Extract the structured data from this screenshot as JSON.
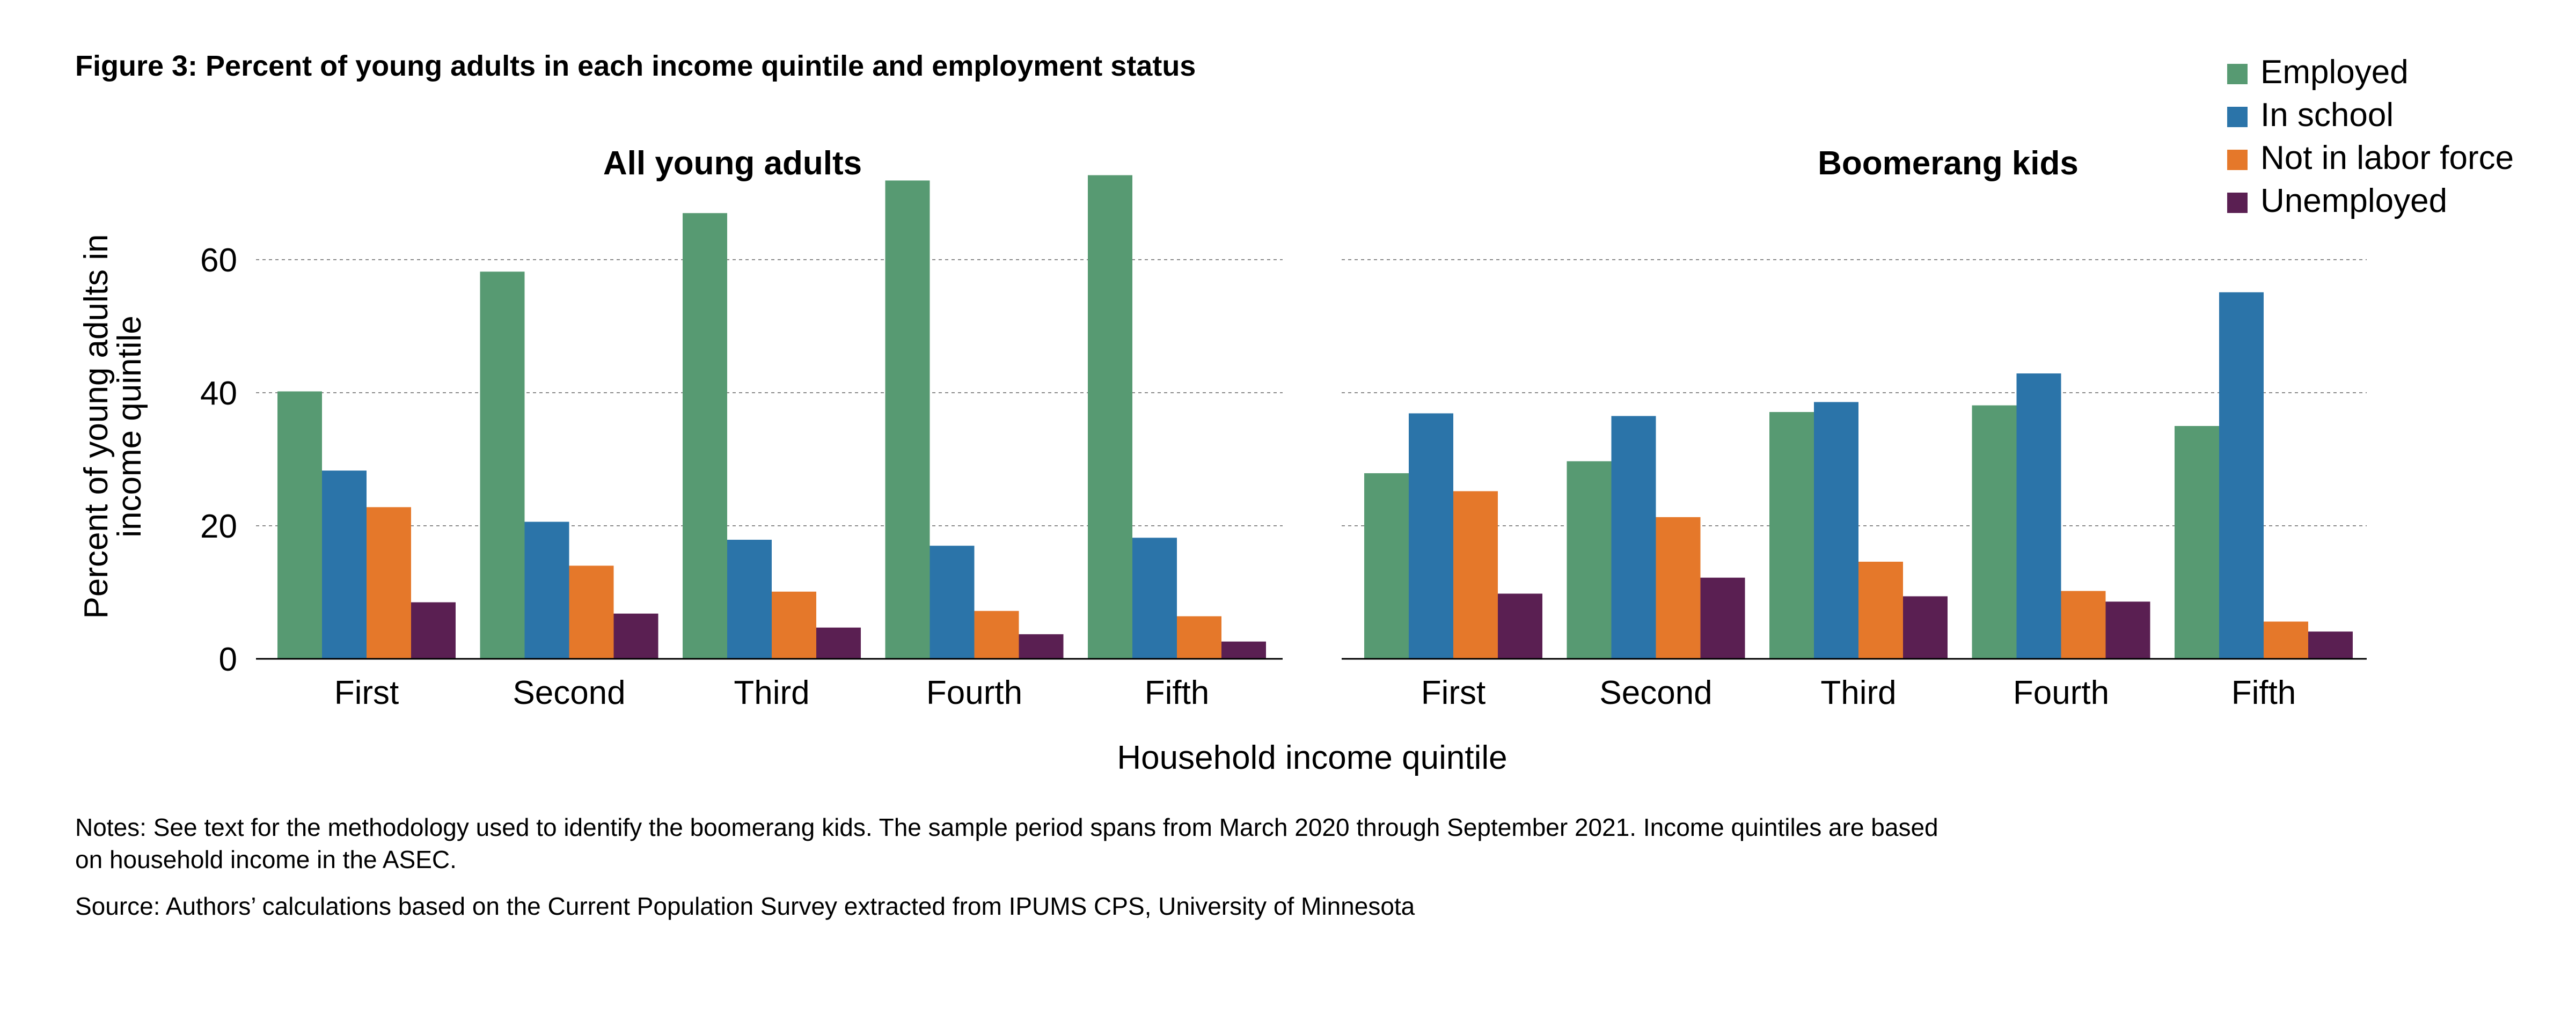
{
  "figure_title": "Figure 3: Percent of young adults in each income quintile and employment status",
  "notes": "Notes: See text for the methodology used to identify the boomerang kids. The sample period spans from March 2020 through September 2021. Income quintiles are based on household income in the ASEC.",
  "source": "Source: Authors’ calculations based on the Current Population Survey extracted from IPUMS CPS, University of Minnesota",
  "colors": {
    "Employed": "#579a72",
    "In school": "#2b74a9",
    "Not in labor force": "#e5782a",
    "Unemployed": "#5a1f52",
    "grid": "#8a8a8a"
  },
  "chart_data": {
    "type": "bar",
    "xlabel": "Household income quintile",
    "ylabel": "Percent of young adults in income quintile",
    "ylim": [
      0,
      73
    ],
    "yticks": [
      0,
      20,
      40,
      60
    ],
    "grid": "horizontal dotted",
    "legend_position": "top-right",
    "categories": [
      "First",
      "Second",
      "Third",
      "Fourth",
      "Fifth"
    ],
    "panels": [
      {
        "title": "All young adults",
        "series": [
          {
            "name": "Employed",
            "values": [
              40.2,
              58.2,
              67.0,
              71.9,
              72.7
            ]
          },
          {
            "name": "In school",
            "values": [
              28.3,
              20.6,
              17.9,
              17.0,
              18.2
            ]
          },
          {
            "name": "Not in labor force",
            "values": [
              22.8,
              14.0,
              10.1,
              7.2,
              6.4
            ]
          },
          {
            "name": "Unemployed",
            "values": [
              8.5,
              6.8,
              4.7,
              3.7,
              2.6
            ]
          }
        ]
      },
      {
        "title": "Boomerang kids",
        "series": [
          {
            "name": "Employed",
            "values": [
              27.9,
              29.7,
              37.1,
              38.1,
              35.0
            ]
          },
          {
            "name": "In school",
            "values": [
              36.9,
              36.5,
              38.6,
              42.9,
              55.1
            ]
          },
          {
            "name": "Not in labor force",
            "values": [
              25.2,
              21.3,
              14.6,
              10.2,
              5.6
            ]
          },
          {
            "name": "Unemployed",
            "values": [
              9.8,
              12.2,
              9.4,
              8.6,
              4.1
            ]
          }
        ]
      }
    ]
  }
}
